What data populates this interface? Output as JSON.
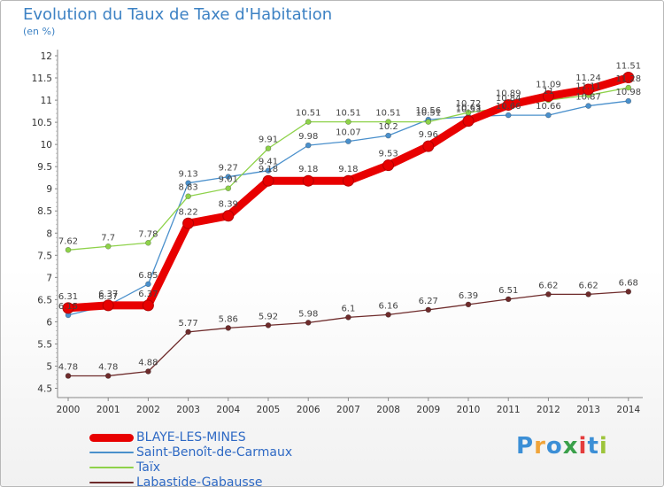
{
  "header": {
    "title": "Evolution du Taux de Taxe d'Habitation",
    "subtitle": "(en %)"
  },
  "brand": {
    "letters": [
      "P",
      "r",
      "o",
      "x",
      "i",
      "t",
      "i"
    ],
    "colors": [
      "#3c8fd6",
      "#f0a43a",
      "#3c8fd6",
      "#3aa04a",
      "#e43c3c",
      "#3c8fd6",
      "#9dc43a"
    ]
  },
  "chart_data": {
    "type": "line",
    "title": "Evolution du Taux de Taxe d'Habitation",
    "ylabel": "(en %)",
    "x": [
      "2000",
      "2001",
      "2002",
      "2003",
      "2004",
      "2005",
      "2006",
      "2007",
      "2008",
      "2009",
      "2010",
      "2011",
      "2012",
      "2013",
      "2014"
    ],
    "ylim": [
      4.5,
      12
    ],
    "yticks": [
      "4.5",
      "5",
      "5.5",
      "6",
      "6.5",
      "7",
      "7.5",
      "8",
      "8.5",
      "9",
      "9.5",
      "10",
      "10.5",
      "11",
      "11.5",
      "12"
    ],
    "grid": false,
    "legend": "bottom-left",
    "series": [
      {
        "name": "Saint-Benoît-de-Carmaux",
        "color": "#4a90cc",
        "values": [
          6.15,
          6.37,
          6.85,
          9.13,
          9.27,
          9.41,
          9.98,
          10.07,
          10.2,
          10.56,
          10.63,
          10.66,
          10.66,
          10.87,
          10.98
        ],
        "labels": [
          "6.15",
          "6.37",
          "6.85",
          "9.13",
          "9.27",
          "9.41",
          "9.98",
          "10.07",
          "10.2",
          "10.56",
          "10.63",
          "10.66",
          "10.66",
          "10.87",
          "10.98"
        ]
      },
      {
        "name": "Taïx",
        "color": "#8ed24a",
        "values": [
          7.62,
          7.7,
          7.78,
          8.83,
          9.01,
          9.91,
          10.51,
          10.51,
          10.51,
          10.51,
          10.72,
          10.84,
          11.0,
          11.11,
          11.28
        ],
        "labels": [
          "7.62",
          "7.7",
          "7.78",
          "8.83",
          "9.01",
          "9.91",
          "10.51",
          "10.51",
          "10.51",
          "10.51",
          "10.72",
          "10.84",
          "11",
          "11.11",
          "11.28"
        ]
      },
      {
        "name": "Labastide-Gabausse",
        "color": "#6e2b2b",
        "values": [
          4.78,
          4.78,
          4.88,
          5.77,
          5.86,
          5.92,
          5.98,
          6.1,
          6.16,
          6.27,
          6.39,
          6.51,
          6.62,
          6.62,
          6.68
        ],
        "labels": [
          "4.78",
          "4.78",
          "4.88",
          "5.77",
          "5.86",
          "5.92",
          "5.98",
          "6.1",
          "6.16",
          "6.27",
          "6.39",
          "6.51",
          "6.62",
          "6.62",
          "6.68"
        ]
      },
      {
        "name": "BLAYE-LES-MINES",
        "color": "#e80000",
        "values": [
          6.31,
          6.37,
          6.37,
          8.22,
          8.39,
          9.18,
          9.18,
          9.18,
          9.53,
          9.96,
          10.53,
          10.89,
          11.09,
          11.24,
          11.51
        ],
        "labels": [
          "6.31",
          "6.37",
          "6.37",
          "8.22",
          "8.39",
          "9.18",
          "9.18",
          "9.18",
          "9.53",
          "9.96",
          "10.53",
          "10.89",
          "11.09",
          "11.24",
          "11.51"
        ]
      }
    ],
    "legend_entries": [
      {
        "name": "BLAYE-LES-MINES",
        "color": "#e80000",
        "thickness": 9
      },
      {
        "name": "Saint-Benoît-de-Carmaux",
        "color": "#4a90cc",
        "thickness": 2
      },
      {
        "name": "Taïx",
        "color": "#8ed24a",
        "thickness": 2
      },
      {
        "name": "Labastide-Gabausse",
        "color": "#6e2b2b",
        "thickness": 2
      }
    ]
  }
}
